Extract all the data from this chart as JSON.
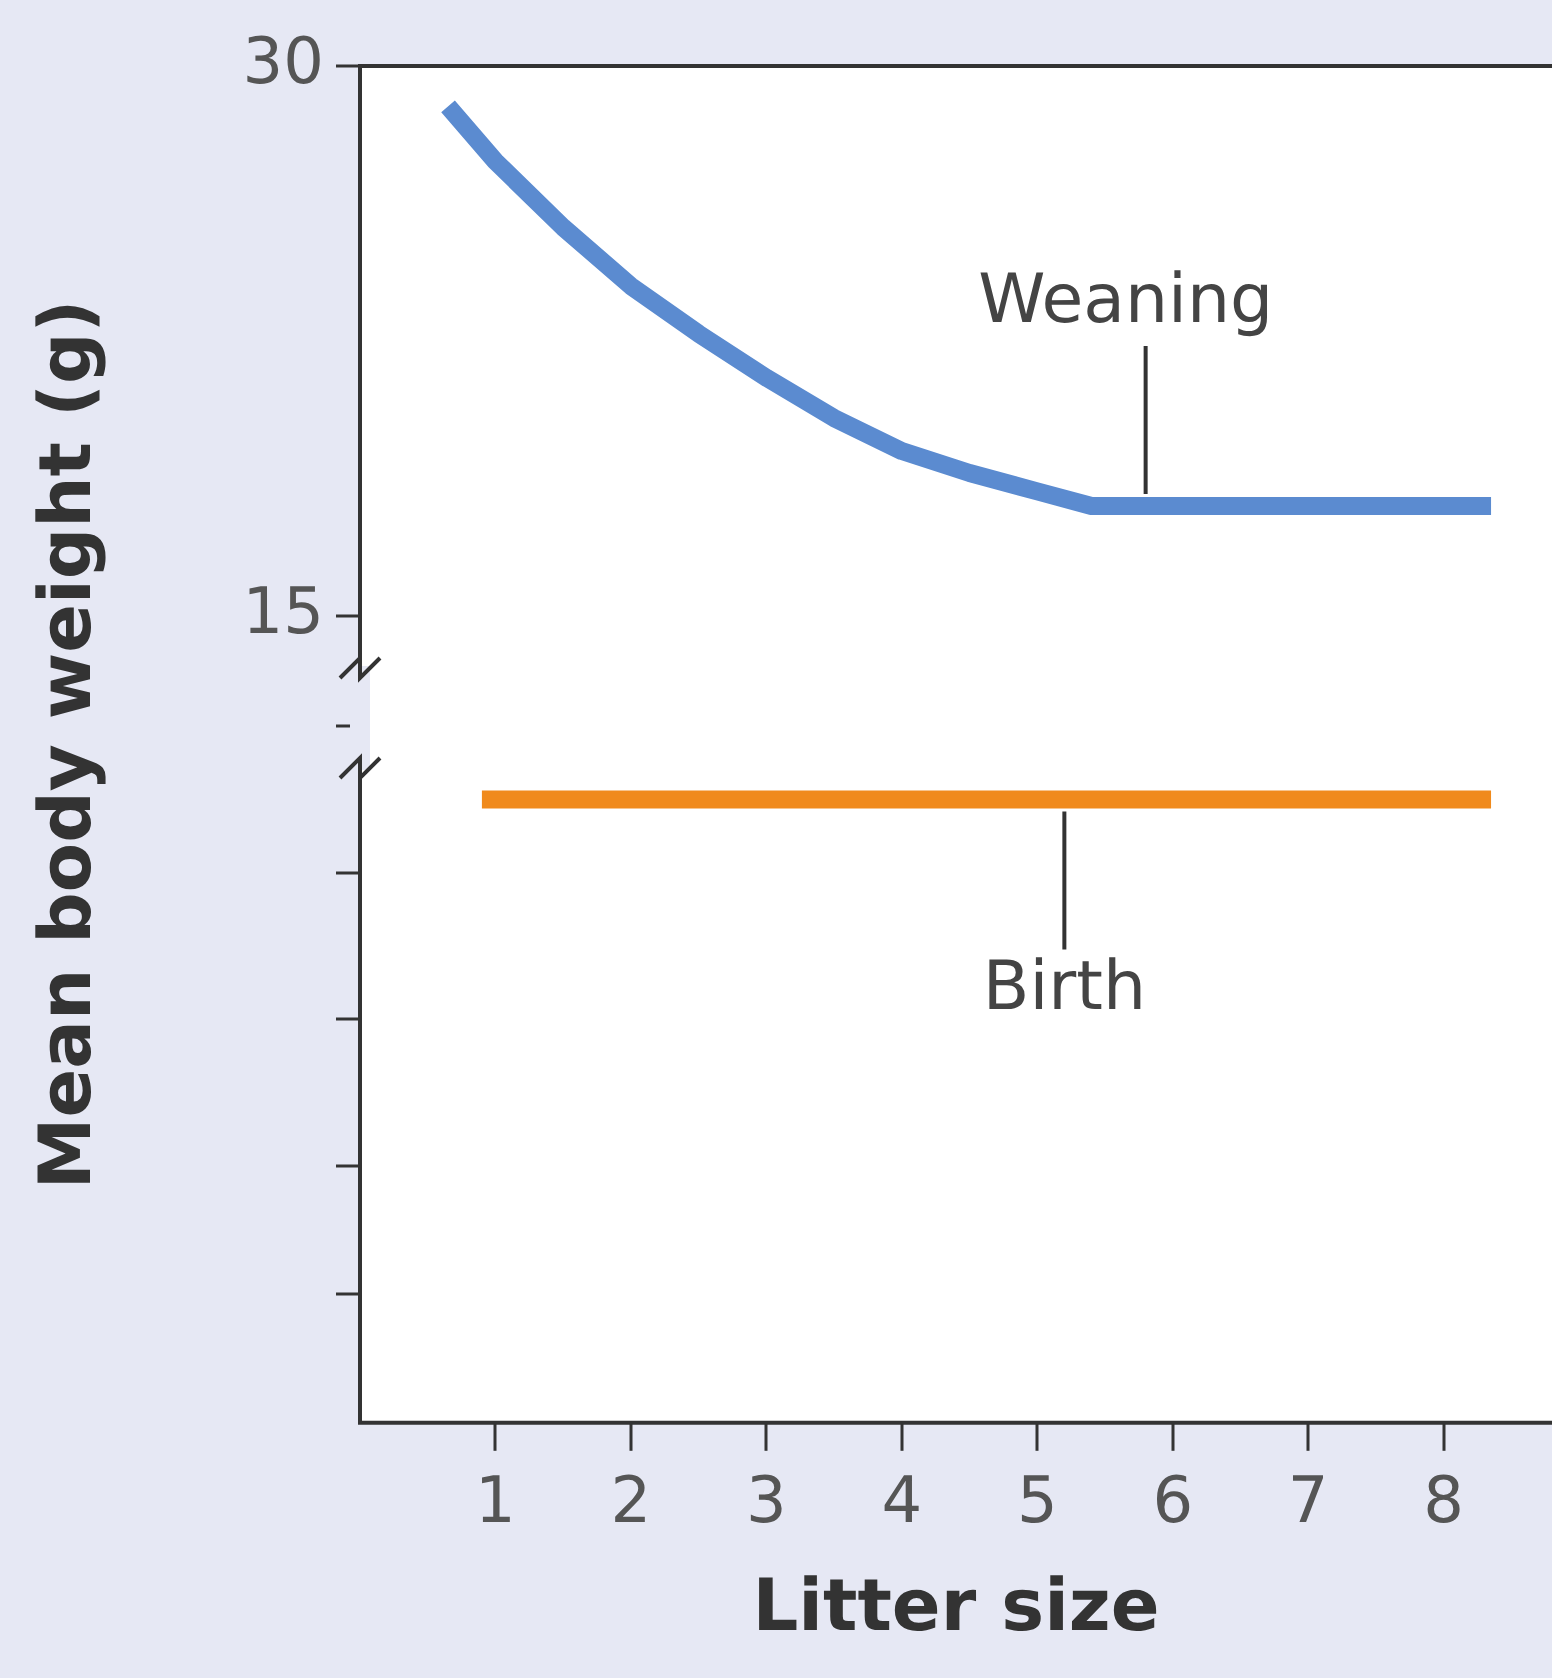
{
  "chart_data": {
    "type": "line",
    "xlabel": "Litter size",
    "ylabel": "Mean body weight (g)",
    "xlim": [
      0,
      8.8
    ],
    "xticks": [
      1,
      2,
      3,
      4,
      5,
      6,
      7,
      8
    ],
    "ylim": [
      -7,
      30
    ],
    "yticks": [
      30,
      15,
      {
        "value": 12,
        "label": null
      },
      {
        "value": 8,
        "label": null
      },
      {
        "value": 4,
        "label": null
      },
      {
        "value": 0,
        "label": null
      },
      {
        "value": -3.5,
        "label": null
      }
    ],
    "series": [
      {
        "color": "#5b8bd0",
        "x": [
          0.65,
          1,
          1.5,
          2,
          2.5,
          3,
          3.5,
          4,
          4.5,
          5,
          5.4,
          6,
          7,
          8,
          8.35
        ],
        "values": [
          28.9,
          27.4,
          25.6,
          24,
          22.7,
          21.5,
          20.4,
          19.5,
          18.9,
          18.4,
          18,
          18,
          18,
          18,
          18
        ]
      },
      {
        "color": "#f08a1c",
        "x": [
          0.9,
          8.35
        ],
        "values": [
          10,
          10
        ]
      }
    ],
    "annotations": [
      {
        "text": "Weaning",
        "x": 5.8,
        "y": 18
      },
      {
        "text": "Birth",
        "x": 5.2,
        "y": 10
      }
    ],
    "grid": false,
    "line_style": "solid",
    "marker": "none"
  }
}
